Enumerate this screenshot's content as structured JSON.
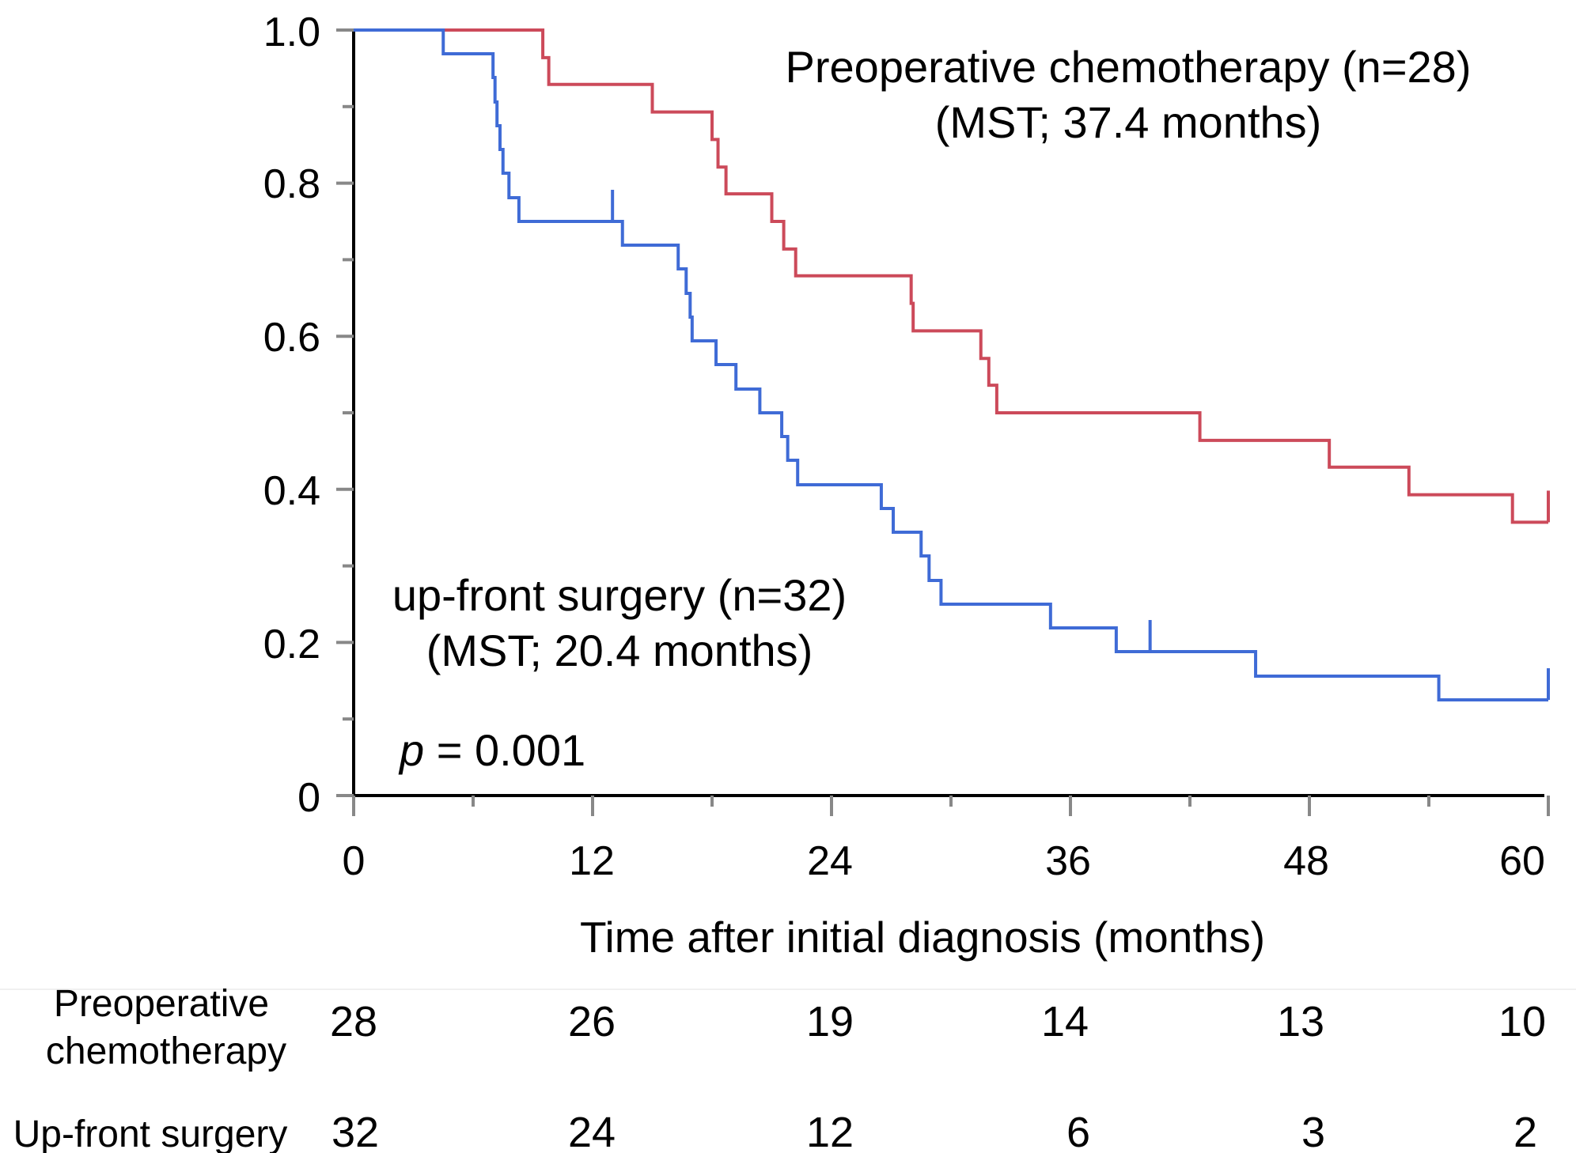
{
  "chart_data": {
    "type": "line",
    "step": true,
    "title": "",
    "xlabel": "Time after initial diagnosis (months)",
    "ylabel": "",
    "xlim": [
      0,
      60
    ],
    "ylim": [
      0,
      1.0
    ],
    "x_ticks": [
      "0",
      "12",
      "24",
      "36",
      "48",
      "60"
    ],
    "y_ticks": [
      "0",
      "0.2",
      "0.4",
      "0.6",
      "0.8",
      "1.0"
    ],
    "grid": false,
    "series": [
      {
        "name": "Preoperative chemotherapy",
        "color": "#cc4a5a",
        "x": [
          0,
          9.5,
          9.8,
          15,
          18,
          18.3,
          18.7,
          21,
          21.6,
          22.2,
          28,
          28.1,
          31.5,
          31.9,
          32.3,
          42.5,
          49,
          53,
          58.2,
          60
        ],
        "y": [
          1.0,
          0.964,
          0.929,
          0.893,
          0.857,
          0.821,
          0.786,
          0.75,
          0.714,
          0.679,
          0.643,
          0.607,
          0.571,
          0.536,
          0.5,
          0.464,
          0.429,
          0.393,
          0.357,
          0.357
        ],
        "censor_x": [
          60
        ],
        "label": "Preoperative chemotherapy (n=28)",
        "mst_label": "(MST; 37.4 months)"
      },
      {
        "name": "up-front surgery",
        "color": "#3f6bd6",
        "x": [
          0,
          4.5,
          7,
          7.1,
          7.2,
          7.35,
          7.5,
          7.8,
          8.3,
          9.7,
          13.5,
          16.3,
          16.7,
          16.9,
          17.0,
          18.2,
          19.2,
          20.4,
          21.5,
          21.8,
          22.3,
          26.5,
          27.1,
          28.5,
          28.9,
          29.5,
          35,
          38.3,
          45.3,
          54.5,
          60
        ],
        "y": [
          1.0,
          0.969,
          0.938,
          0.906,
          0.875,
          0.844,
          0.813,
          0.781,
          0.75,
          0.75,
          0.719,
          0.688,
          0.656,
          0.625,
          0.594,
          0.563,
          0.531,
          0.5,
          0.469,
          0.438,
          0.406,
          0.375,
          0.344,
          0.313,
          0.281,
          0.25,
          0.219,
          0.188,
          0.156,
          0.125,
          0.125
        ],
        "censor_x": [
          13,
          40,
          60
        ],
        "label": "up-front surgery (n=32)",
        "mst_label": "(MST; 20.4 months)"
      }
    ],
    "annotations": {
      "p_italic": "p",
      "p_rest": " = 0.001"
    },
    "risk_table": {
      "times": [
        0,
        12,
        24,
        36,
        48,
        60
      ],
      "rows": [
        {
          "label_lines": [
            "Preoperative",
            "chemotherapy"
          ],
          "values": [
            "28",
            "26",
            "19",
            "14",
            "13",
            "10"
          ]
        },
        {
          "label_lines": [
            "Up-front surgery"
          ],
          "values": [
            "32",
            "24",
            "12",
            "6",
            "3",
            "2"
          ]
        }
      ]
    }
  }
}
